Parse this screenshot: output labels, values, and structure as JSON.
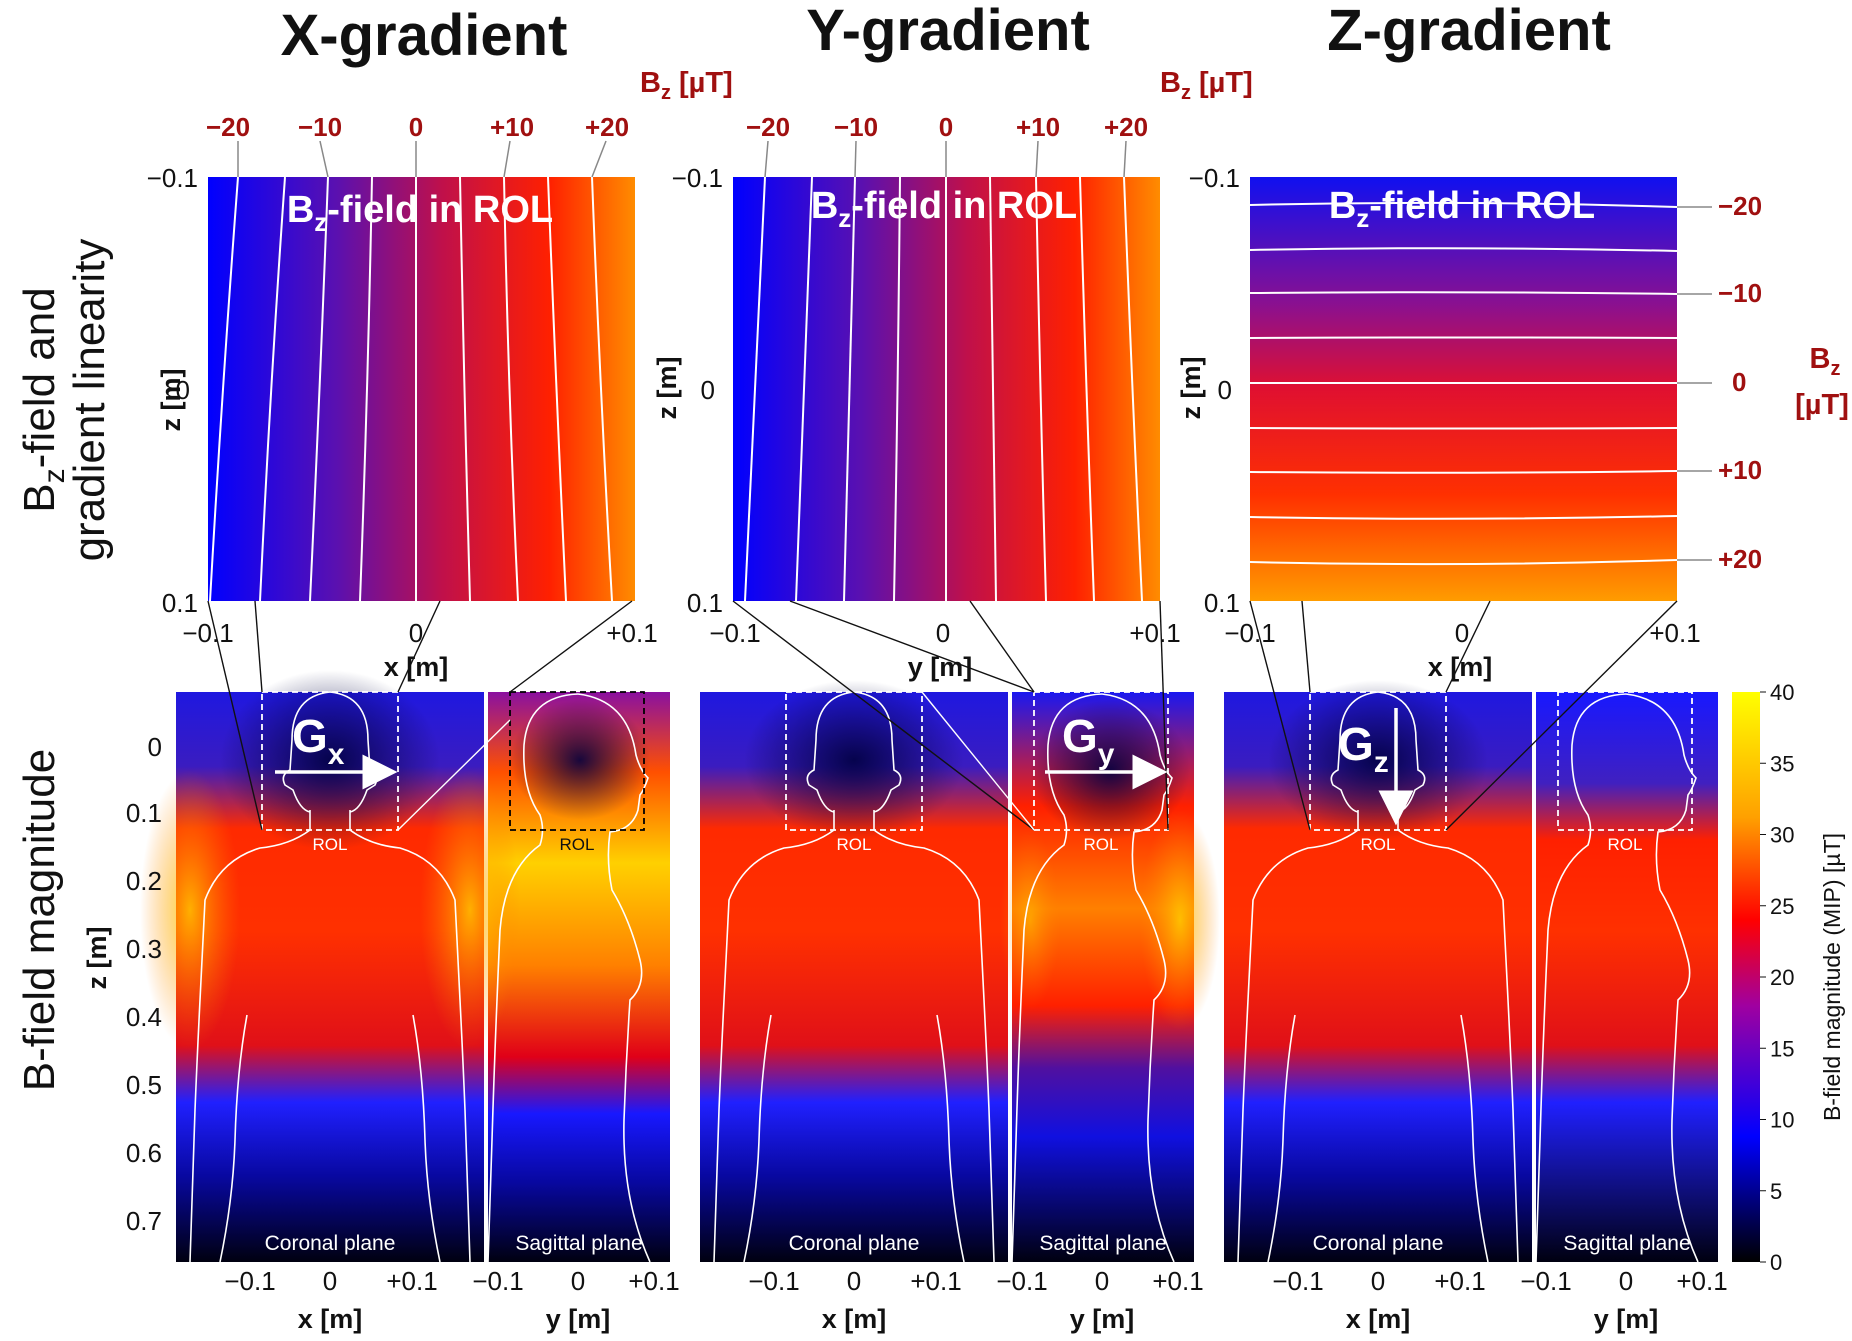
{
  "titles": {
    "x": "X-gradient",
    "y": "Y-gradient",
    "z": "Z-gradient"
  },
  "row_labels": {
    "top_line1_main": "B",
    "top_line1_sub": "z",
    "top_line1_rest": "-field and",
    "top_line2": "gradient linearity",
    "bottom": "B-field magnitude"
  },
  "bz_unit": {
    "main": "B",
    "sub": "z",
    "rest": " [µT]"
  },
  "bz_unit_side": {
    "main": "B",
    "sub": "z",
    "line2": "[µT]"
  },
  "contour_ticks": [
    "−20",
    "−10",
    "0",
    "+10",
    "+20"
  ],
  "panel_label": {
    "main": "B",
    "sub": "z",
    "rest": "-field in ROL"
  },
  "top_axes": {
    "z_label": "z [m]",
    "z_ticks": [
      "−0.1",
      "0",
      "0.1"
    ],
    "x_label": "x [m]",
    "y_label": "y [m]",
    "h_ticks": [
      "−0.1",
      "0",
      "+0.1"
    ]
  },
  "bottom_axes": {
    "z_label": "z [m]",
    "z_ticks": [
      "0",
      "0.1",
      "0.2",
      "0.3",
      "0.4",
      "0.5",
      "0.6",
      "0.7"
    ],
    "x_label": "x [m]",
    "y_label": "y [m]",
    "h_ticks": [
      "−0.1",
      "0",
      "+0.1"
    ]
  },
  "plane_labels": {
    "coronal": "Coronal plane",
    "sagittal": "Sagittal plane"
  },
  "rol": "ROL",
  "gradients": {
    "x": {
      "main": "G",
      "sub": "x"
    },
    "y": {
      "main": "G",
      "sub": "y"
    },
    "z": {
      "main": "G",
      "sub": "z"
    }
  },
  "colorbar": {
    "label": "B-field magnitude (MIP) [µT]",
    "ticks": [
      "0",
      "5",
      "10",
      "15",
      "20",
      "25",
      "30",
      "35",
      "40"
    ],
    "min": 0,
    "max": 40
  },
  "colors": {
    "contour_label": "#a01010",
    "orange": "#ff8c00",
    "blue": "#0000ff"
  }
}
